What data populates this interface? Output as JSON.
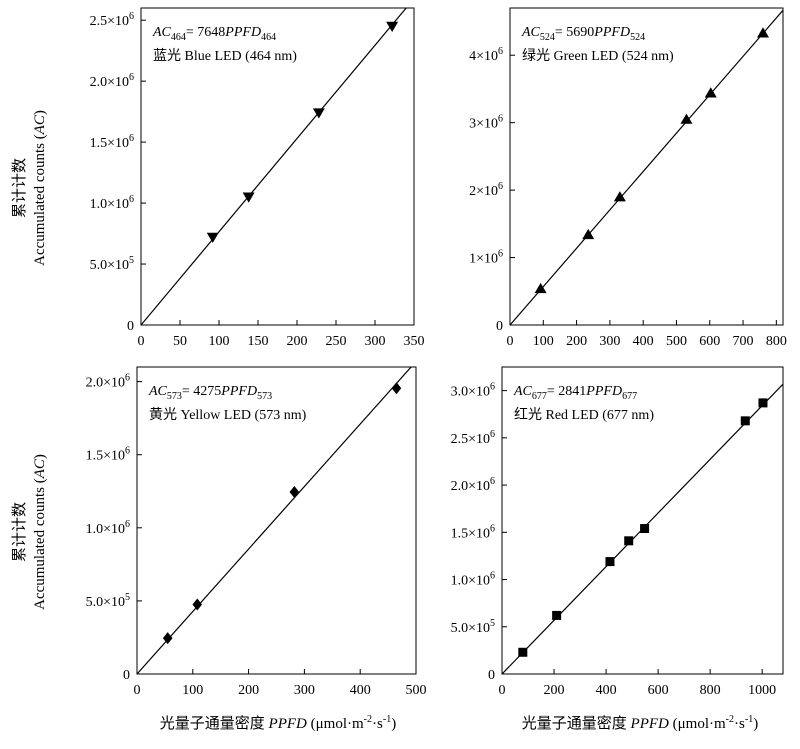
{
  "y_title": {
    "cn": "累计计数",
    "en": "Accumulated counts (",
    "en_ital": "AC",
    "en_end": ")"
  },
  "x_title": {
    "cn": "光量子通量密度 ",
    "ital": "PPFD",
    "unit": " (μmol·m",
    "exp1": "-2",
    "mid": "·s",
    "exp2": "-1",
    "end": ")"
  },
  "chart_data": [
    {
      "type": "scatter",
      "marker": "triangle-down",
      "xlim": [
        0,
        350
      ],
      "ylim": [
        0,
        2600000
      ],
      "x_ticks": [
        "0",
        "50",
        "100",
        "150",
        "200",
        "250",
        "300",
        "350"
      ],
      "x_tick_values": [
        0,
        50,
        100,
        150,
        200,
        250,
        300,
        350
      ],
      "y_ticks": [
        {
          "value": 0,
          "mant": "0",
          "exp": ""
        },
        {
          "value": 500000,
          "mant": "5.0×10",
          "exp": "5"
        },
        {
          "value": 1000000,
          "mant": "1.0×10",
          "exp": "6"
        },
        {
          "value": 1500000,
          "mant": "1.5×10",
          "exp": "6"
        },
        {
          "value": 2000000,
          "mant": "2.0×10",
          "exp": "6"
        },
        {
          "value": 2500000,
          "mant": "2.5×10",
          "exp": "6"
        }
      ],
      "x": [
        92,
        138,
        228,
        322
      ],
      "y": [
        720000,
        1050000,
        1740000,
        2450000
      ],
      "fit": {
        "slope": 7648
      },
      "equation": {
        "lhs": "AC",
        "lhs_sub": "464",
        "eq": "= 7648",
        "rhs": "PPFD",
        "rhs_sub": "464"
      },
      "label": "蓝光 Blue LED (464 nm)"
    },
    {
      "type": "scatter",
      "marker": "triangle-up",
      "xlim": [
        0,
        820
      ],
      "ylim": [
        0,
        4700000
      ],
      "x_ticks": [
        "0",
        "100",
        "200",
        "300",
        "400",
        "500",
        "600",
        "700",
        "800"
      ],
      "x_tick_values": [
        0,
        100,
        200,
        300,
        400,
        500,
        600,
        700,
        800
      ],
      "y_ticks": [
        {
          "value": 0,
          "mant": "0",
          "exp": ""
        },
        {
          "value": 1000000,
          "mant": "1×10",
          "exp": "6"
        },
        {
          "value": 2000000,
          "mant": "2×10",
          "exp": "6"
        },
        {
          "value": 3000000,
          "mant": "3×10",
          "exp": "6"
        },
        {
          "value": 4000000,
          "mant": "4×10",
          "exp": "6"
        }
      ],
      "x": [
        92,
        235,
        330,
        530,
        603,
        760
      ],
      "y": [
        540000,
        1340000,
        1900000,
        3050000,
        3440000,
        4330000
      ],
      "fit": {
        "slope": 5690
      },
      "equation": {
        "lhs": "AC",
        "lhs_sub": "524",
        "eq": "= 5690",
        "rhs": "PPFD",
        "rhs_sub": "524"
      },
      "label": "绿光  Green LED (524 nm)"
    },
    {
      "type": "scatter",
      "marker": "diamond",
      "xlim": [
        0,
        500
      ],
      "ylim": [
        0,
        2100000
      ],
      "x_ticks": [
        "0",
        "100",
        "200",
        "300",
        "400",
        "500"
      ],
      "x_tick_values": [
        0,
        100,
        200,
        300,
        400,
        500
      ],
      "y_ticks": [
        {
          "value": 0,
          "mant": "0",
          "exp": ""
        },
        {
          "value": 500000,
          "mant": "5.0×10",
          "exp": "5"
        },
        {
          "value": 1000000,
          "mant": "1.0×10",
          "exp": "6"
        },
        {
          "value": 1500000,
          "mant": "1.5×10",
          "exp": "6"
        },
        {
          "value": 2000000,
          "mant": "2.0×10",
          "exp": "6"
        }
      ],
      "x": [
        55,
        108,
        282,
        465
      ],
      "y": [
        245000,
        475000,
        1245000,
        1955000
      ],
      "fit": {
        "slope": 4275
      },
      "equation": {
        "lhs": "AC",
        "lhs_sub": "573",
        "eq": "= 4275",
        "rhs": "PPFD",
        "rhs_sub": "573"
      },
      "label": "黄光 Yellow LED (573 nm)"
    },
    {
      "type": "scatter",
      "marker": "square",
      "xlim": [
        0,
        1080
      ],
      "ylim": [
        0,
        3250000
      ],
      "x_ticks": [
        "0",
        "200",
        "400",
        "600",
        "800",
        "1000"
      ],
      "x_tick_values": [
        0,
        200,
        400,
        600,
        800,
        1000
      ],
      "y_ticks": [
        {
          "value": 0,
          "mant": "0",
          "exp": ""
        },
        {
          "value": 500000,
          "mant": "5.0×10",
          "exp": "5"
        },
        {
          "value": 1000000,
          "mant": "1.0×10",
          "exp": "6"
        },
        {
          "value": 1500000,
          "mant": "1.5×10",
          "exp": "6"
        },
        {
          "value": 2000000,
          "mant": "2.0×10",
          "exp": "6"
        },
        {
          "value": 2500000,
          "mant": "2.5×10",
          "exp": "6"
        },
        {
          "value": 3000000,
          "mant": "3.0×10",
          "exp": "6"
        }
      ],
      "x": [
        80,
        210,
        415,
        487,
        548,
        935,
        1003
      ],
      "y": [
        230000,
        620000,
        1190000,
        1410000,
        1540000,
        2680000,
        2870000
      ],
      "fit": {
        "slope": 2841
      },
      "equation": {
        "lhs": "AC",
        "lhs_sub": "677",
        "eq": "= 2841",
        "rhs": "PPFD",
        "rhs_sub": "677"
      },
      "label": "红光  Red LED (677 nm)"
    }
  ]
}
